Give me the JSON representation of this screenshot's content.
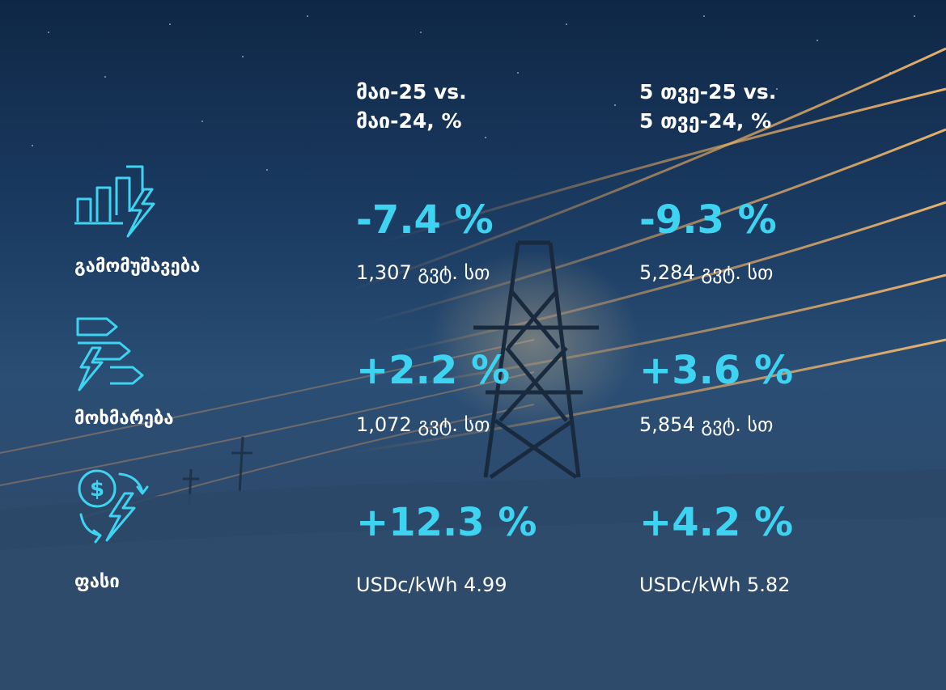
{
  "columns": {
    "col1_header": "მაი-25 vs.\nმაი-24, %",
    "col1_header_line1": "მაი-25 vs.",
    "col1_header_line2": "მაი-24, %",
    "col2_header_line1": "5 თვე-25 vs.",
    "col2_header_line2": "5 თვე-24, %"
  },
  "rows": [
    {
      "label": "გამომუშავება",
      "icon": "bar-chart-lightning-icon",
      "col1_change": "-7.4 %",
      "col1_value": "1,307 გვტ. სთ",
      "col2_change": "-9.3 %",
      "col2_value": "5,284 გვტ. სთ"
    },
    {
      "label": "მოხმარება",
      "icon": "energy-rating-lightning-icon",
      "col1_change": "+2.2 %",
      "col1_value": "1,072 გვტ. სთ",
      "col2_change": "+3.6 %",
      "col2_value": "5,854 გვტ. სთ"
    },
    {
      "label": "ფასი",
      "icon": "dollar-cycle-lightning-icon",
      "col1_change": "+12.3 %",
      "col1_value": "USDc/kWh 4.99",
      "col2_change": "+4.2 %",
      "col2_value": "USDc/kWh 5.82"
    }
  ],
  "colors": {
    "accent": "#3fd3f2",
    "text": "#ffffff",
    "background": "#1f3f63"
  }
}
